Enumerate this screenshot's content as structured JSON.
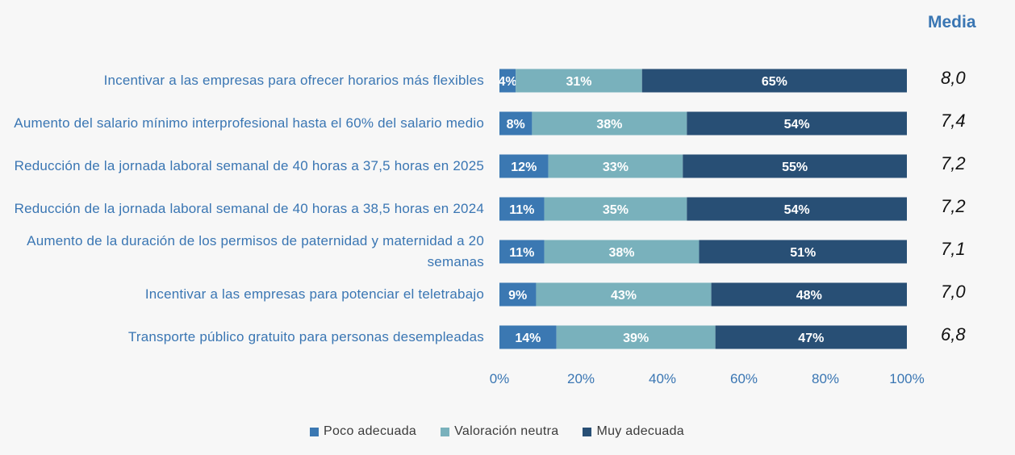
{
  "chart_data": {
    "type": "bar",
    "orientation": "horizontal-stacked-100",
    "media_title": "Media",
    "categories": [
      "Incentivar a las empresas para ofrecer horarios más flexibles",
      "Aumento del salario mínimo interprofesional hasta el 60% del salario medio",
      "Reducción de la jornada laboral semanal de 40 horas a 37,5 horas en 2025",
      "Reducción de la jornada laboral semanal de 40 horas a 38,5 horas en 2024",
      "Aumento de la duración de los permisos de paternidad y maternidad a 20 semanas",
      "Incentivar a las empresas para potenciar el teletrabajo",
      "Transporte público gratuito para personas desempleadas"
    ],
    "series": [
      {
        "name": "Poco adecuada",
        "color": "#3b78b2",
        "values": [
          4,
          8,
          12,
          11,
          11,
          9,
          14
        ]
      },
      {
        "name": "Valoración neutra",
        "color": "#79b1bc",
        "values": [
          31,
          38,
          33,
          35,
          38,
          43,
          39
        ]
      },
      {
        "name": "Muy adecuada",
        "color": "#284f75",
        "values": [
          65,
          54,
          55,
          54,
          51,
          48,
          47
        ]
      }
    ],
    "media": [
      "8,0",
      "7,4",
      "7,2",
      "7,2",
      "7,1",
      "7,0",
      "6,8"
    ],
    "x_ticks": [
      "0%",
      "20%",
      "40%",
      "60%",
      "80%",
      "100%"
    ],
    "xlim": [
      0,
      100
    ],
    "legend_position": "bottom"
  }
}
